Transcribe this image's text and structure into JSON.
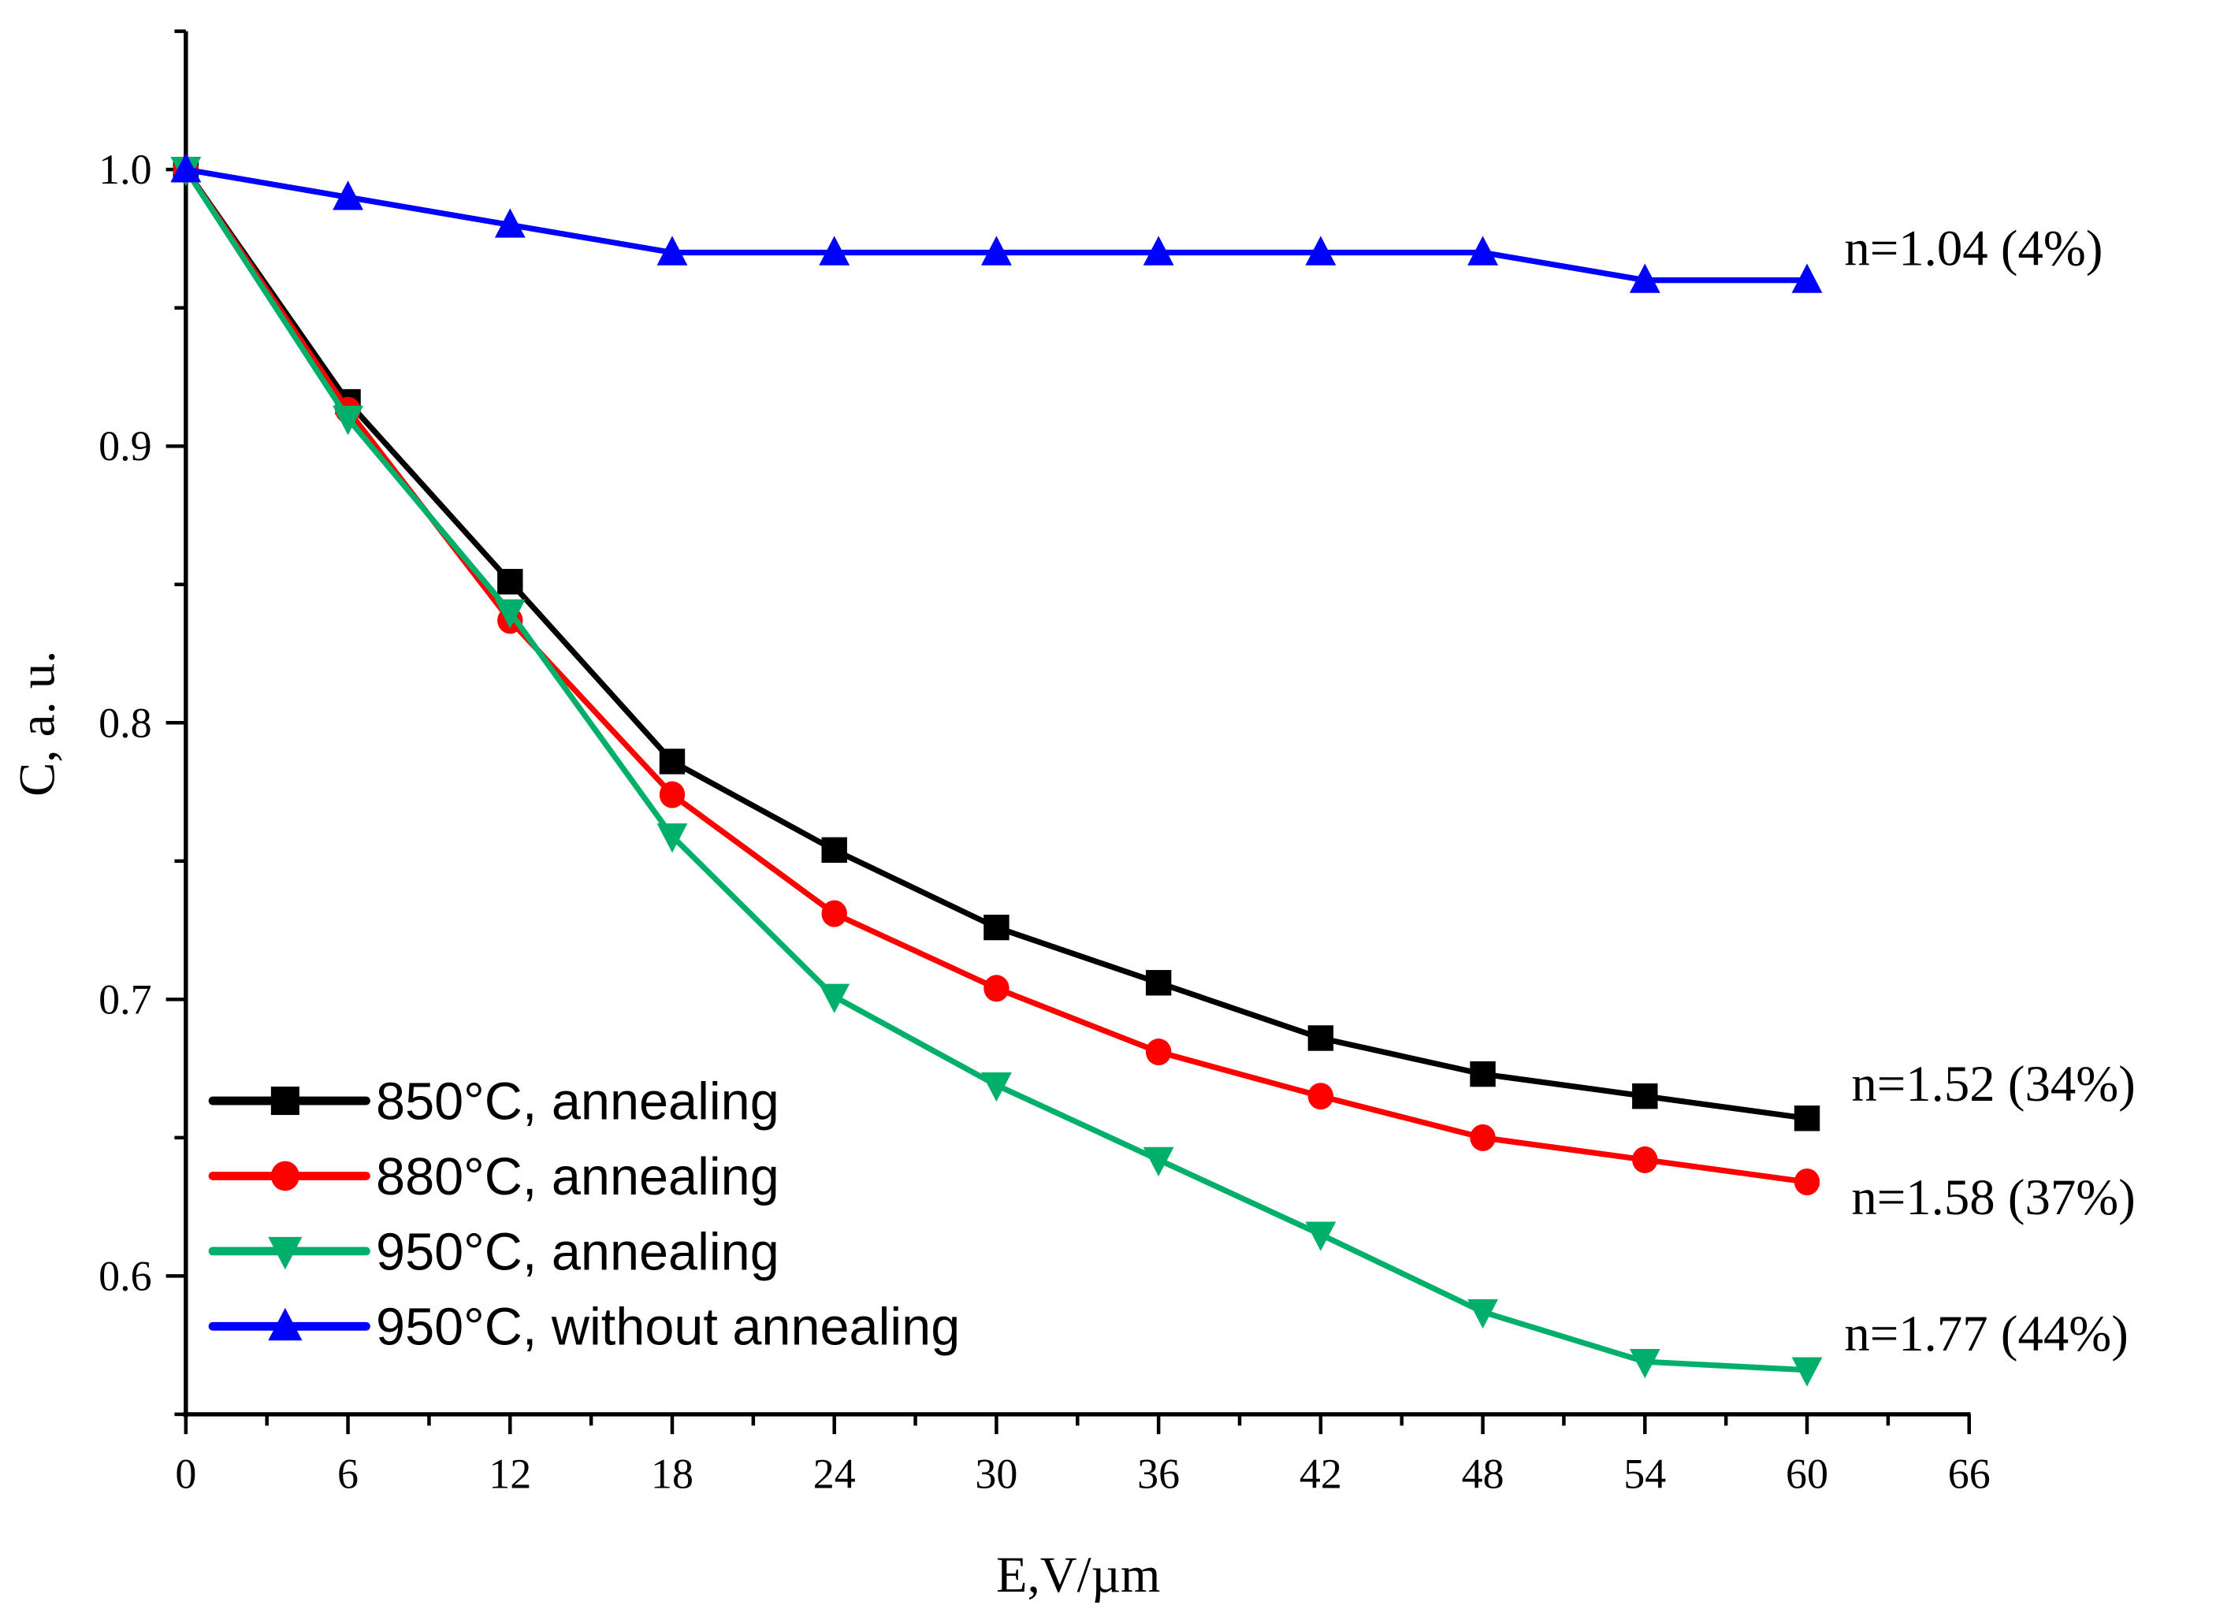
{
  "chart_data": {
    "type": "line",
    "title": "",
    "xlabel": "E,V/µm",
    "ylabel": "C, a. u.",
    "xlim": [
      0,
      66
    ],
    "ylim": [
      0.55,
      1.05
    ],
    "xticks": [
      "0",
      "6",
      "12",
      "18",
      "24",
      "30",
      "36",
      "42",
      "48",
      "54",
      "60",
      "66"
    ],
    "yticks": [
      "0.6",
      "0.7",
      "0.8",
      "0.9",
      "1.0"
    ],
    "legend_position": "bottom-left",
    "grid": false,
    "x": [
      0,
      6,
      12,
      18,
      24,
      30,
      36,
      42,
      48,
      54,
      60
    ],
    "series": [
      {
        "name": "850°C, annealing",
        "color": "#000000",
        "marker": "square",
        "values": [
          1.0,
          0.916,
          0.851,
          0.786,
          0.754,
          0.726,
          0.706,
          0.686,
          0.673,
          0.665,
          0.657
        ],
        "annotation": "n=1.52 (34%)"
      },
      {
        "name": "880°C, annealing",
        "color": "#ff0000",
        "marker": "circle",
        "values": [
          1.0,
          0.913,
          0.837,
          0.774,
          0.731,
          0.704,
          0.681,
          0.665,
          0.65,
          0.642,
          0.634
        ],
        "annotation": "n=1.58 (37%)"
      },
      {
        "name": "950°C, annealing",
        "color": "#00b06a",
        "marker": "triangle-down",
        "values": [
          1.0,
          0.91,
          0.84,
          0.759,
          0.701,
          0.669,
          0.642,
          0.615,
          0.587,
          0.569,
          0.566
        ],
        "annotation": "n=1.77 (44%)"
      },
      {
        "name": "950°C, without annealing",
        "color": "#0000ff",
        "marker": "triangle-up",
        "values": [
          1.0,
          0.99,
          0.98,
          0.97,
          0.97,
          0.97,
          0.97,
          0.97,
          0.97,
          0.96,
          0.96
        ],
        "annotation": "n=1.04 (4%)"
      }
    ]
  }
}
